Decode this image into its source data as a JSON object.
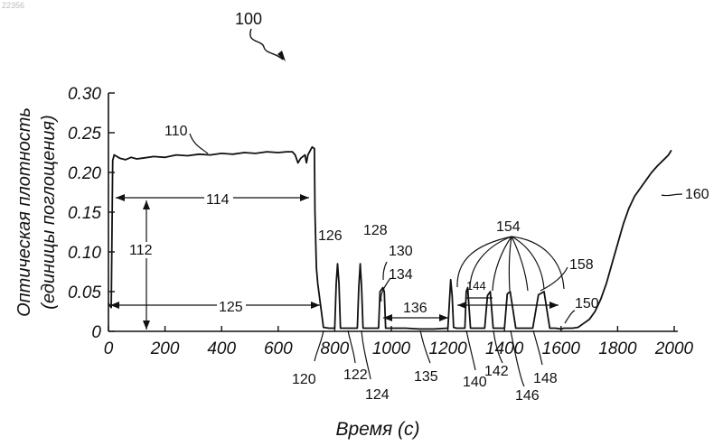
{
  "watermark": "22356",
  "figure_number": "100",
  "chart_data": {
    "type": "line",
    "xlabel": "Время (с)",
    "ylabel_line1": "Оптическая плотность",
    "ylabel_line2": "(единицы поглощения)",
    "xlim": [
      0,
      2000
    ],
    "ylim": [
      0,
      0.3
    ],
    "x_ticks": [
      "0",
      "200",
      "400",
      "600",
      "800",
      "1000",
      "1200",
      "1400",
      "1600",
      "1800",
      "2000"
    ],
    "y_ticks": [
      "0",
      "0.05",
      "0.10",
      "0.15",
      "0.20",
      "0.25",
      "0.30"
    ],
    "grid": false,
    "series": [
      {
        "x": [
          0,
          10,
          15,
          20,
          40,
          60,
          80,
          100,
          120,
          160,
          200,
          240,
          280,
          320,
          360,
          400,
          440,
          480,
          520,
          560,
          600,
          630,
          650,
          660,
          670,
          680,
          695,
          700,
          705,
          720,
          728,
          730,
          735,
          740,
          760,
          780,
          800,
          805,
          810,
          815,
          820,
          840,
          860,
          880,
          885,
          890,
          895,
          900,
          940,
          955,
          960,
          970,
          975,
          980,
          1000,
          1050,
          1100,
          1150,
          1200,
          1210,
          1215,
          1220,
          1230,
          1260,
          1265,
          1270,
          1280,
          1330,
          1340,
          1350,
          1360,
          1380,
          1400,
          1410,
          1420,
          1440,
          1460,
          1480,
          1500,
          1520,
          1540,
          1560,
          1580,
          1600,
          1610,
          1640,
          1660,
          1680,
          1700,
          1720,
          1740,
          1760,
          1780,
          1800,
          1820,
          1840,
          1860,
          1880,
          1900,
          1920,
          1940,
          1960,
          1980,
          1990
        ],
        "y": [
          0.035,
          0.03,
          0.215,
          0.222,
          0.218,
          0.216,
          0.219,
          0.217,
          0.218,
          0.22,
          0.219,
          0.222,
          0.221,
          0.223,
          0.222,
          0.224,
          0.223,
          0.225,
          0.224,
          0.226,
          0.225,
          0.226,
          0.226,
          0.222,
          0.212,
          0.218,
          0.222,
          0.212,
          0.222,
          0.232,
          0.23,
          0.15,
          0.08,
          0.06,
          0.005,
          0.004,
          0.004,
          0.06,
          0.085,
          0.06,
          0.004,
          0.004,
          0.004,
          0.004,
          0.055,
          0.085,
          0.055,
          0.004,
          0.004,
          0.004,
          0.05,
          0.055,
          0.05,
          0.004,
          0.004,
          0.004,
          0.003,
          0.003,
          0.004,
          0.065,
          0.045,
          0.005,
          0.004,
          0.004,
          0.05,
          0.055,
          0.004,
          0.004,
          0.045,
          0.05,
          0.004,
          0.004,
          0.004,
          0.047,
          0.05,
          0.004,
          0.004,
          0.004,
          0.004,
          0.046,
          0.05,
          0.004,
          0.004,
          0.003,
          0.004,
          0.004,
          0.005,
          0.01,
          0.015,
          0.025,
          0.04,
          0.06,
          0.085,
          0.11,
          0.135,
          0.155,
          0.17,
          0.18,
          0.19,
          0.2,
          0.208,
          0.215,
          0.222,
          0.228
        ]
      }
    ],
    "reference_labels": [
      "110",
      "112",
      "114",
      "120",
      "122",
      "124",
      "125",
      "126",
      "128",
      "130",
      "134",
      "135",
      "136",
      "140",
      "142",
      "144",
      "146",
      "148",
      "150",
      "154",
      "158",
      "160"
    ]
  }
}
